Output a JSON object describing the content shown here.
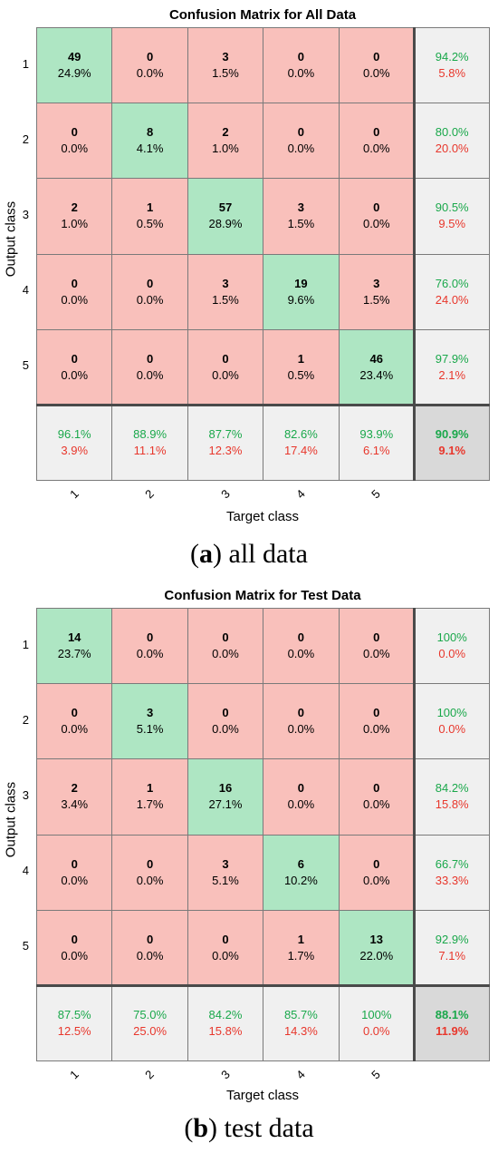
{
  "colors": {
    "correct": "#aee6c3",
    "incorrect": "#f9c0bb",
    "summary": "#f0f0f0",
    "overall": "#d9d9d9",
    "good_text": "#1aa84b",
    "bad_text": "#e8372c"
  },
  "panels": [
    {
      "caption_letter": "a",
      "caption_text": ") all data",
      "caption_open": "(",
      "chart_data": {
        "type": "heatmap",
        "title": "Confusion Matrix for All Data",
        "xlabel": "Target class",
        "ylabel": "Output class",
        "x_ticks": [
          "1",
          "2",
          "3",
          "4",
          "5"
        ],
        "y_ticks": [
          "1",
          "2",
          "3",
          "4",
          "5"
        ],
        "counts": [
          [
            49,
            0,
            3,
            0,
            0
          ],
          [
            0,
            8,
            2,
            0,
            0
          ],
          [
            2,
            1,
            57,
            3,
            0
          ],
          [
            0,
            0,
            3,
            19,
            3
          ],
          [
            0,
            0,
            0,
            1,
            46
          ]
        ],
        "percents": [
          [
            "24.9%",
            "0.0%",
            "1.5%",
            "0.0%",
            "0.0%"
          ],
          [
            "0.0%",
            "4.1%",
            "1.0%",
            "0.0%",
            "0.0%"
          ],
          [
            "1.0%",
            "0.5%",
            "28.9%",
            "1.5%",
            "0.0%"
          ],
          [
            "0.0%",
            "0.0%",
            "1.5%",
            "9.6%",
            "1.5%"
          ],
          [
            "0.0%",
            "0.0%",
            "0.0%",
            "0.5%",
            "23.4%"
          ]
        ],
        "row_summary": [
          [
            "94.2%",
            "5.8%"
          ],
          [
            "80.0%",
            "20.0%"
          ],
          [
            "90.5%",
            "9.5%"
          ],
          [
            "76.0%",
            "24.0%"
          ],
          [
            "97.9%",
            "2.1%"
          ]
        ],
        "col_summary": [
          [
            "96.1%",
            "3.9%"
          ],
          [
            "88.9%",
            "11.1%"
          ],
          [
            "87.7%",
            "12.3%"
          ],
          [
            "82.6%",
            "17.4%"
          ],
          [
            "93.9%",
            "6.1%"
          ]
        ],
        "overall": [
          "90.9%",
          "9.1%"
        ]
      }
    },
    {
      "caption_letter": "b",
      "caption_text": ") test data",
      "caption_open": "(",
      "chart_data": {
        "type": "heatmap",
        "title": "Confusion Matrix for Test Data",
        "xlabel": "Target class",
        "ylabel": "Output class",
        "x_ticks": [
          "1",
          "2",
          "3",
          "4",
          "5"
        ],
        "y_ticks": [
          "1",
          "2",
          "3",
          "4",
          "5"
        ],
        "counts": [
          [
            14,
            0,
            0,
            0,
            0
          ],
          [
            0,
            3,
            0,
            0,
            0
          ],
          [
            2,
            1,
            16,
            0,
            0
          ],
          [
            0,
            0,
            3,
            6,
            0
          ],
          [
            0,
            0,
            0,
            1,
            13
          ]
        ],
        "percents": [
          [
            "23.7%",
            "0.0%",
            "0.0%",
            "0.0%",
            "0.0%"
          ],
          [
            "0.0%",
            "5.1%",
            "0.0%",
            "0.0%",
            "0.0%"
          ],
          [
            "3.4%",
            "1.7%",
            "27.1%",
            "0.0%",
            "0.0%"
          ],
          [
            "0.0%",
            "0.0%",
            "5.1%",
            "10.2%",
            "0.0%"
          ],
          [
            "0.0%",
            "0.0%",
            "0.0%",
            "1.7%",
            "22.0%"
          ]
        ],
        "row_summary": [
          [
            "100%",
            "0.0%"
          ],
          [
            "100%",
            "0.0%"
          ],
          [
            "84.2%",
            "15.8%"
          ],
          [
            "66.7%",
            "33.3%"
          ],
          [
            "92.9%",
            "7.1%"
          ]
        ],
        "col_summary": [
          [
            "87.5%",
            "12.5%"
          ],
          [
            "75.0%",
            "25.0%"
          ],
          [
            "84.2%",
            "15.8%"
          ],
          [
            "85.7%",
            "14.3%"
          ],
          [
            "100%",
            "0.0%"
          ]
        ],
        "overall": [
          "88.1%",
          "11.9%"
        ]
      }
    }
  ]
}
